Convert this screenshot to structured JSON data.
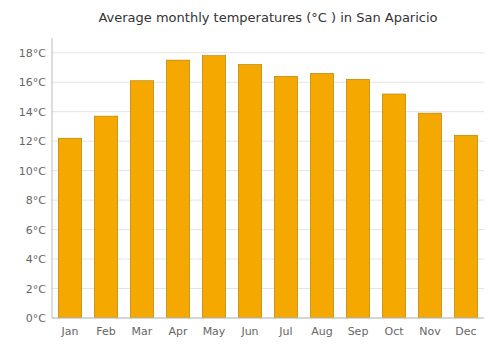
{
  "chart_data": {
    "type": "bar",
    "title": "Average monthly temperatures (°C ) in San Aparicio",
    "categories": [
      "Jan",
      "Feb",
      "Mar",
      "Apr",
      "May",
      "Jun",
      "Jul",
      "Aug",
      "Sep",
      "Oct",
      "Nov",
      "Dec"
    ],
    "values": [
      12.2,
      13.7,
      16.1,
      17.5,
      17.8,
      17.2,
      16.4,
      16.6,
      16.2,
      15.2,
      13.9,
      12.4
    ],
    "color": "#F5A800",
    "ylim": [
      0,
      19
    ],
    "yticks": [
      {
        "value": 0,
        "label": "0°C"
      },
      {
        "value": 2,
        "label": "2°C"
      },
      {
        "value": 4,
        "label": "4°C"
      },
      {
        "value": 6,
        "label": "6°C"
      },
      {
        "value": 8,
        "label": "8°C"
      },
      {
        "value": 10,
        "label": "10°C"
      },
      {
        "value": 12,
        "label": "12°C"
      },
      {
        "value": 14,
        "label": "14°C"
      },
      {
        "value": 16,
        "label": "16°C"
      },
      {
        "value": 18,
        "label": "18°C"
      }
    ],
    "grid": true
  }
}
